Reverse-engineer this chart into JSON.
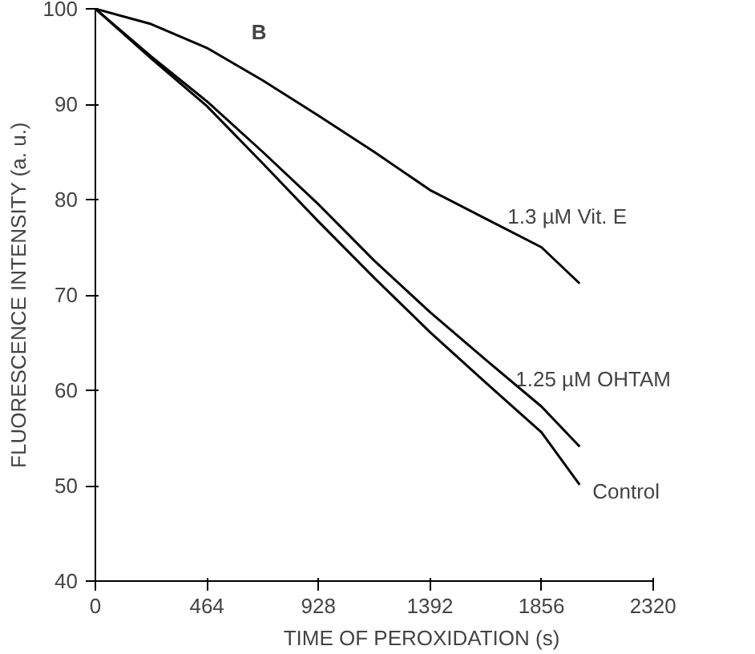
{
  "chart_data": {
    "type": "line",
    "title": "B",
    "xlabel": "TIME OF PEROXIDATION (s)",
    "ylabel": "FLUORESCENCE INTENSITY (a. u.)",
    "xlim": [
      0,
      2320
    ],
    "ylim": [
      40,
      100
    ],
    "xticks": [
      0,
      464,
      928,
      1392,
      1856,
      2320
    ],
    "yticks": [
      40,
      50,
      60,
      70,
      80,
      90,
      100
    ],
    "grid": false,
    "legend": false,
    "marker": "none",
    "line_style": "solid",
    "series": [
      {
        "name": "1.3 µM Vit. E",
        "color": "#000000",
        "x": [
          0,
          232,
          464,
          696,
          928,
          1160,
          1392,
          1624,
          1856,
          2015
        ],
        "values": [
          100,
          98.4,
          95.9,
          92.5,
          88.8,
          85.0,
          81.0,
          78.0,
          75.0,
          71.2
        ]
      },
      {
        "name": "1.25 µM OHTAM",
        "color": "#000000",
        "x": [
          0,
          232,
          464,
          696,
          928,
          1160,
          1392,
          1624,
          1856,
          2015
        ],
        "values": [
          100,
          95.0,
          90.3,
          85.0,
          79.5,
          73.6,
          68.2,
          63.2,
          58.3,
          54.1
        ]
      },
      {
        "name": "Control",
        "color": "#000000",
        "x": [
          0,
          232,
          464,
          696,
          928,
          1160,
          1392,
          1624,
          1856,
          2015
        ],
        "values": [
          100,
          94.8,
          89.8,
          83.8,
          77.7,
          71.8,
          66.1,
          60.8,
          55.6,
          50.1
        ]
      }
    ]
  }
}
